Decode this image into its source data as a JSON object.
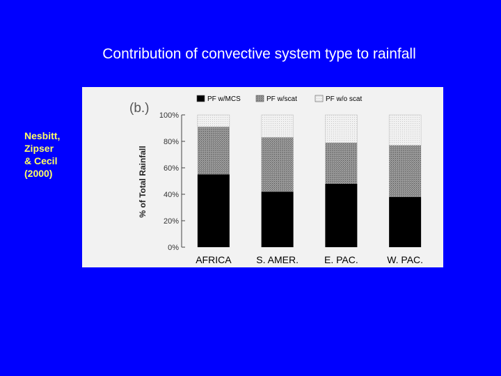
{
  "slide": {
    "title": "Contribution of convective system type to rainfall",
    "citation_lines": [
      "Nesbitt,",
      "Zipser",
      "& Cecil",
      "(2000)"
    ]
  },
  "chart_data": {
    "type": "bar",
    "stacked": true,
    "panel_label": "(b.)",
    "categories": [
      "AFRICA",
      "S. AMER.",
      "E. PAC.",
      "W. PAC."
    ],
    "series": [
      {
        "name": "PF w/MCS",
        "values": [
          55,
          42,
          48,
          38
        ],
        "color": "#000000"
      },
      {
        "name": "PF w/scat",
        "values": [
          36,
          41,
          31,
          39
        ],
        "color": "#8a8a8a"
      },
      {
        "name": "PF w/o scat",
        "values": [
          9,
          17,
          21,
          23
        ],
        "color": "#ebebeb"
      }
    ],
    "ylabel": "% of Total Rainfall",
    "ylim": [
      0,
      100
    ],
    "yticks": [
      "0%",
      "20%",
      "40%",
      "60%",
      "80%",
      "100%"
    ],
    "ytick_values": [
      0,
      20,
      40,
      60,
      80,
      100
    ],
    "legend_position": "top",
    "grid": false
  }
}
